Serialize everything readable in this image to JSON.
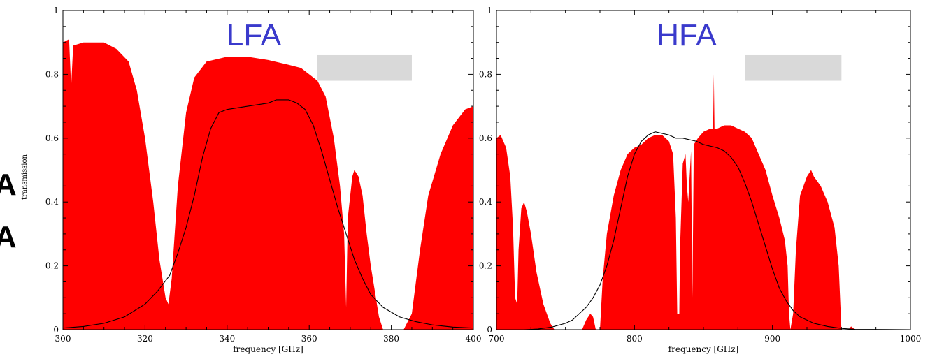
{
  "side_letters": [
    "A",
    "A"
  ],
  "colors": {
    "fill": "#ff0000",
    "curve": "#000000",
    "band": "#d9d9d9",
    "title": "#3a3acc"
  },
  "chart_data": [
    {
      "type": "area",
      "title": "LFA",
      "xlabel": "frequency [GHz]",
      "ylabel": "transmission",
      "xlim": [
        300,
        400
      ],
      "ylim": [
        0,
        1
      ],
      "x_ticks": [
        "300",
        "320",
        "340",
        "360",
        "380",
        "400"
      ],
      "y_ticks": [
        "0",
        "0.2",
        "0.4",
        "0.6",
        "0.8",
        "1"
      ],
      "grid": false,
      "legend": "none",
      "shaded_band": {
        "x_range": [
          362,
          385
        ],
        "y_range": [
          0.78,
          0.86
        ]
      },
      "series": [
        {
          "kind": "filled-area",
          "points": [
            [
              300,
              0.9
            ],
            [
              301.5,
              0.91
            ],
            [
              302,
              0.76
            ],
            [
              302.5,
              0.89
            ],
            [
              305,
              0.9
            ],
            [
              310,
              0.9
            ],
            [
              313,
              0.88
            ],
            [
              316,
              0.84
            ],
            [
              318,
              0.75
            ],
            [
              320,
              0.6
            ],
            [
              322,
              0.4
            ],
            [
              323.5,
              0.22
            ],
            [
              325,
              0.1
            ],
            [
              325.7,
              0.08
            ],
            [
              326.5,
              0.16
            ],
            [
              328,
              0.45
            ],
            [
              330,
              0.68
            ],
            [
              332,
              0.79
            ],
            [
              335,
              0.84
            ],
            [
              340,
              0.855
            ],
            [
              345,
              0.855
            ],
            [
              350,
              0.845
            ],
            [
              355,
              0.83
            ],
            [
              358,
              0.82
            ],
            [
              360,
              0.8
            ],
            [
              362,
              0.78
            ],
            [
              364,
              0.73
            ],
            [
              366,
              0.6
            ],
            [
              367.5,
              0.45
            ],
            [
              368.5,
              0.3
            ],
            [
              369,
              0.07
            ],
            [
              369.4,
              0.35
            ],
            [
              370.5,
              0.48
            ],
            [
              371,
              0.5
            ],
            [
              372,
              0.48
            ],
            [
              373,
              0.42
            ],
            [
              374,
              0.3
            ],
            [
              375,
              0.2
            ],
            [
              376,
              0.12
            ],
            [
              377,
              0.04
            ],
            [
              378,
              0.0
            ],
            [
              383,
              0.0
            ],
            [
              385,
              0.05
            ],
            [
              387,
              0.25
            ],
            [
              389,
              0.42
            ],
            [
              392,
              0.55
            ],
            [
              395,
              0.64
            ],
            [
              398,
              0.69
            ],
            [
              400,
              0.7
            ]
          ]
        },
        {
          "kind": "line",
          "points": [
            [
              300,
              0.005
            ],
            [
              305,
              0.01
            ],
            [
              310,
              0.02
            ],
            [
              315,
              0.04
            ],
            [
              320,
              0.08
            ],
            [
              323,
              0.12
            ],
            [
              326,
              0.17
            ],
            [
              328,
              0.24
            ],
            [
              330,
              0.32
            ],
            [
              332,
              0.42
            ],
            [
              334,
              0.54
            ],
            [
              336,
              0.63
            ],
            [
              338,
              0.68
            ],
            [
              340,
              0.69
            ],
            [
              345,
              0.7
            ],
            [
              350,
              0.71
            ],
            [
              352,
              0.72
            ],
            [
              355,
              0.72
            ],
            [
              357,
              0.71
            ],
            [
              359,
              0.69
            ],
            [
              361,
              0.64
            ],
            [
              363,
              0.56
            ],
            [
              365,
              0.47
            ],
            [
              367,
              0.38
            ],
            [
              369,
              0.3
            ],
            [
              371,
              0.22
            ],
            [
              373,
              0.16
            ],
            [
              375,
              0.11
            ],
            [
              378,
              0.07
            ],
            [
              382,
              0.04
            ],
            [
              386,
              0.025
            ],
            [
              390,
              0.015
            ],
            [
              395,
              0.008
            ],
            [
              400,
              0.005
            ]
          ]
        }
      ]
    },
    {
      "type": "area",
      "title": "HFA",
      "xlabel": "frequency [GHz]",
      "ylabel": "",
      "xlim": [
        700,
        1000
      ],
      "ylim": [
        0,
        1
      ],
      "x_ticks": [
        "700",
        "800",
        "900",
        "1000"
      ],
      "y_ticks": [
        "0",
        "0.2",
        "0.4",
        "0.6",
        "0.8",
        "1"
      ],
      "grid": false,
      "legend": "none",
      "shaded_band": {
        "x_range": [
          880,
          950
        ],
        "y_range": [
          0.78,
          0.86
        ]
      },
      "series": [
        {
          "kind": "filled-area",
          "points": [
            [
              700,
              0.6
            ],
            [
              703,
              0.61
            ],
            [
              707,
              0.57
            ],
            [
              710,
              0.48
            ],
            [
              712,
              0.32
            ],
            [
              713.5,
              0.1
            ],
            [
              715,
              0.08
            ],
            [
              716,
              0.25
            ],
            [
              718,
              0.38
            ],
            [
              720,
              0.4
            ],
            [
              722,
              0.37
            ],
            [
              725,
              0.3
            ],
            [
              729,
              0.18
            ],
            [
              734,
              0.08
            ],
            [
              739,
              0.02
            ],
            [
              742,
              0.0
            ],
            [
              762,
              0.0
            ],
            [
              765,
              0.03
            ],
            [
              768,
              0.05
            ],
            [
              770,
              0.04
            ],
            [
              772,
              0.0
            ],
            [
              775,
              0.0
            ],
            [
              777,
              0.16
            ],
            [
              780,
              0.3
            ],
            [
              785,
              0.42
            ],
            [
              790,
              0.5
            ],
            [
              795,
              0.55
            ],
            [
              800,
              0.57
            ],
            [
              805,
              0.58
            ],
            [
              810,
              0.6
            ],
            [
              815,
              0.61
            ],
            [
              820,
              0.61
            ],
            [
              825,
              0.59
            ],
            [
              828,
              0.55
            ],
            [
              830,
              0.35
            ],
            [
              831,
              0.05
            ],
            [
              832.5,
              0.05
            ],
            [
              833,
              0.25
            ],
            [
              835,
              0.52
            ],
            [
              837,
              0.55
            ],
            [
              838,
              0.45
            ],
            [
              839,
              0.4
            ],
            [
              840,
              0.48
            ],
            [
              841,
              0.56
            ],
            [
              842,
              0.1
            ],
            [
              843,
              0.58
            ],
            [
              846,
              0.6
            ],
            [
              850,
              0.62
            ],
            [
              855,
              0.63
            ],
            [
              857,
              0.63
            ],
            [
              857.5,
              0.8
            ],
            [
              858,
              0.63
            ],
            [
              860,
              0.63
            ],
            [
              865,
              0.64
            ],
            [
              870,
              0.64
            ],
            [
              875,
              0.63
            ],
            [
              880,
              0.62
            ],
            [
              885,
              0.6
            ],
            [
              890,
              0.55
            ],
            [
              895,
              0.5
            ],
            [
              900,
              0.42
            ],
            [
              905,
              0.35
            ],
            [
              909,
              0.28
            ],
            [
              911,
              0.2
            ],
            [
              912,
              0.05
            ],
            [
              913,
              0.0
            ],
            [
              915,
              0.05
            ],
            [
              917,
              0.25
            ],
            [
              920,
              0.42
            ],
            [
              925,
              0.48
            ],
            [
              928,
              0.5
            ],
            [
              930,
              0.48
            ],
            [
              935,
              0.45
            ],
            [
              940,
              0.4
            ],
            [
              945,
              0.32
            ],
            [
              948,
              0.2
            ],
            [
              950,
              0.0
            ],
            [
              955,
              0.0
            ],
            [
              957,
              0.01
            ],
            [
              960,
              0.0
            ],
            [
              1000,
              0.0
            ]
          ]
        },
        {
          "kind": "line",
          "points": [
            [
              700,
              0.0
            ],
            [
              720,
              0.0
            ],
            [
              730,
              0.002
            ],
            [
              740,
              0.008
            ],
            [
              750,
              0.02
            ],
            [
              755,
              0.03
            ],
            [
              760,
              0.05
            ],
            [
              765,
              0.07
            ],
            [
              770,
              0.1
            ],
            [
              775,
              0.14
            ],
            [
              780,
              0.2
            ],
            [
              785,
              0.28
            ],
            [
              790,
              0.38
            ],
            [
              795,
              0.48
            ],
            [
              800,
              0.55
            ],
            [
              805,
              0.59
            ],
            [
              810,
              0.61
            ],
            [
              815,
              0.62
            ],
            [
              820,
              0.615
            ],
            [
              825,
              0.61
            ],
            [
              830,
              0.6
            ],
            [
              835,
              0.6
            ],
            [
              840,
              0.595
            ],
            [
              845,
              0.59
            ],
            [
              850,
              0.58
            ],
            [
              855,
              0.575
            ],
            [
              860,
              0.57
            ],
            [
              865,
              0.56
            ],
            [
              870,
              0.54
            ],
            [
              875,
              0.51
            ],
            [
              880,
              0.46
            ],
            [
              885,
              0.4
            ],
            [
              890,
              0.33
            ],
            [
              895,
              0.26
            ],
            [
              900,
              0.19
            ],
            [
              905,
              0.13
            ],
            [
              910,
              0.09
            ],
            [
              915,
              0.06
            ],
            [
              920,
              0.04
            ],
            [
              930,
              0.02
            ],
            [
              940,
              0.01
            ],
            [
              950,
              0.004
            ],
            [
              960,
              0.001
            ],
            [
              1000,
              0.0
            ]
          ]
        }
      ]
    }
  ]
}
